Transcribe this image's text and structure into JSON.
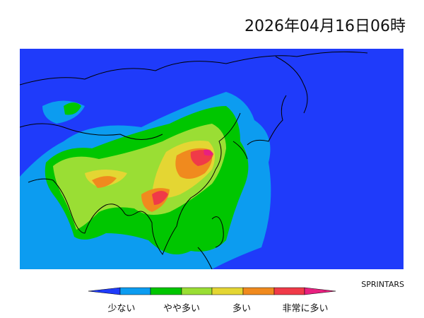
{
  "header": {
    "title": "2026年04月16日06時"
  },
  "credit": "SPRINTARS",
  "legend": {
    "labels": [
      "少ない",
      "やや多い",
      "多い",
      "非常に多い"
    ]
  }
}
